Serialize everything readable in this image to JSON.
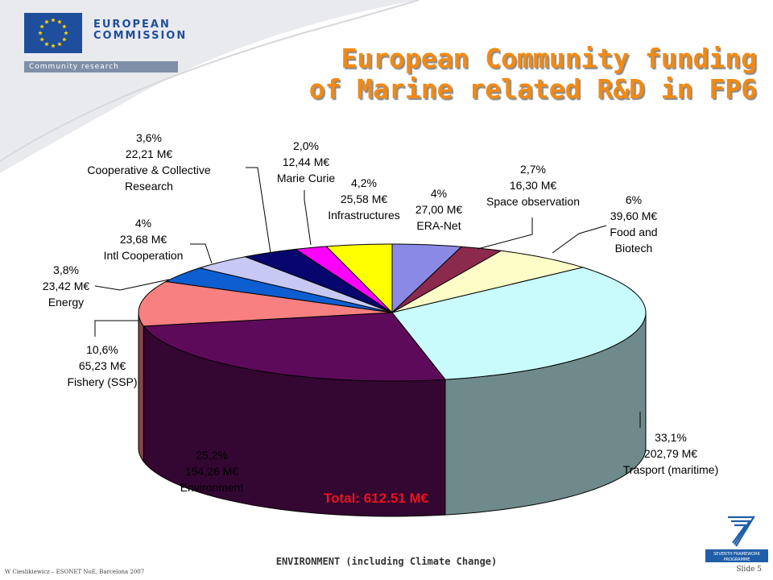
{
  "header": {
    "logo": {
      "line1": "EUROPEAN",
      "line2": "COMMISSION",
      "sub": "Community research"
    },
    "title_line1": "European Community funding",
    "title_line2": "of Marine related R&D in FP6"
  },
  "chart_data": {
    "type": "pie",
    "style": "3d",
    "unit": "M€",
    "slices": [
      {
        "pct": 4.0,
        "value": 27.0,
        "color": "#8a8ae6",
        "label_lines": [
          "4%",
          "27,00 M€",
          "ERA-Net"
        ]
      },
      {
        "pct": 2.7,
        "value": 16.3,
        "color": "#8c2a4d",
        "label_lines": [
          "2,7%",
          "16,30 M€",
          "Space observation"
        ]
      },
      {
        "pct": 6.0,
        "value": 39.6,
        "color": "#fdfdc8",
        "label_lines": [
          "6%",
          "39,60 M€",
          "Food and",
          "Biotech"
        ]
      },
      {
        "pct": 33.1,
        "value": 202.79,
        "color": "#c9fbfd",
        "label_lines": [
          "33,1%",
          "202,79 M€",
          "Trasport (maritime)"
        ]
      },
      {
        "pct": 25.2,
        "value": 154.26,
        "color": "#5e0a5a",
        "label_lines": [
          "25,2%",
          "154,26 M€",
          "Environment"
        ]
      },
      {
        "pct": 10.6,
        "value": 65.23,
        "color": "#f88080",
        "label_lines": [
          "10,6%",
          "65,23 M€",
          "Fishery (SSP)"
        ]
      },
      {
        "pct": 3.8,
        "value": 23.42,
        "color": "#0d5fd1",
        "label_lines": [
          "3,8%",
          "23,42 M€",
          "Energy"
        ]
      },
      {
        "pct": 4.0,
        "value": 23.68,
        "color": "#c8c8f4",
        "label_lines": [
          "4%",
          "23,68 M€",
          "Intl Cooperation"
        ]
      },
      {
        "pct": 3.6,
        "value": 22.21,
        "color": "#06066e",
        "label_lines": [
          "3,6%",
          "22,21 M€",
          "Cooperative & Collective",
          "Research"
        ]
      },
      {
        "pct": 2.0,
        "value": 12.44,
        "color": "#ff00ff",
        "label_lines": [
          "2,0%",
          "12,44 M€",
          "Marie Curie"
        ]
      },
      {
        "pct": 4.2,
        "value": 25.58,
        "color": "#ffff00",
        "label_lines": [
          "4,2%",
          "25,58 M€",
          "Infrastructures"
        ]
      }
    ],
    "total_label": "Total: 612.51 M€"
  },
  "footer": {
    "center": "ENVIRONMENT (including Climate Change)",
    "credit": "W Cieslikiewicz – ESONET NoE, Barcelona 2007",
    "slide": "Slide 5",
    "fp7_logo": {
      "line1": "SEVENTH FRAMEWORK",
      "line2": "PROGRAMME"
    }
  }
}
